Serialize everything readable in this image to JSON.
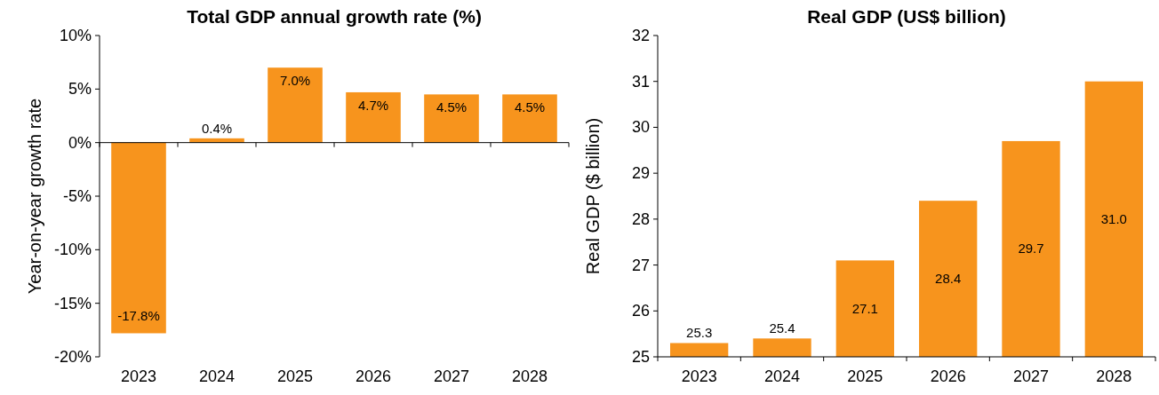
{
  "chart_data": [
    {
      "type": "bar",
      "title": "Total GDP annual growth rate (%)",
      "ylabel": "Year-on-year growth rate",
      "categories": [
        "2023",
        "2024",
        "2025",
        "2026",
        "2027",
        "2028"
      ],
      "values": [
        -17.8,
        0.4,
        7.0,
        4.7,
        4.5,
        4.5
      ],
      "color": "#f7941d",
      "value_labels": [
        "-17.8%",
        "0.4%",
        "7.0%",
        "4.7%",
        "4.5%",
        "4.5%"
      ],
      "ylim": [
        -20,
        10
      ],
      "yticks": [
        {
          "value": -20,
          "label": "-20%"
        },
        {
          "value": -15,
          "label": "-15%"
        },
        {
          "value": -10,
          "label": "-10%"
        },
        {
          "value": -5,
          "label": "-5%"
        },
        {
          "value": 0,
          "label": "0%"
        },
        {
          "value": 5,
          "label": "5%"
        },
        {
          "value": 10,
          "label": "10%"
        }
      ]
    },
    {
      "type": "bar",
      "title": "Real GDP (US$ billion)",
      "ylabel": "Real GDP ($ billion)",
      "categories": [
        "2023",
        "2024",
        "2025",
        "2026",
        "2027",
        "2028"
      ],
      "values": [
        25.3,
        25.4,
        27.1,
        28.4,
        29.7,
        31.0
      ],
      "color": "#f7941d",
      "value_labels": [
        "25.3",
        "25.4",
        "27.1",
        "28.4",
        "29.7",
        "31.0"
      ],
      "ylim": [
        25,
        32
      ],
      "yticks": [
        25,
        26,
        27,
        28,
        29,
        30,
        31,
        32
      ]
    }
  ]
}
